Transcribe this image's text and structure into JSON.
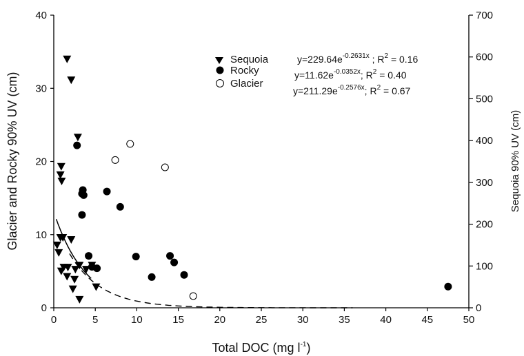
{
  "chart_data": {
    "type": "scatter",
    "xlabel": {
      "main": "Total DOC (mg l",
      "sup": "-1",
      "end": ")"
    },
    "ylabel_left": "Glacier and Rocky 90% UV (cm)",
    "ylabel_right": "Sequoia 90% UV (cm)",
    "xlim": [
      0,
      50
    ],
    "ylim_left": [
      0,
      40
    ],
    "ylim_right": [
      0,
      700
    ],
    "x_ticks": [
      "0",
      "5",
      "10",
      "15",
      "20",
      "25",
      "30",
      "35",
      "40",
      "45",
      "50"
    ],
    "y_left_ticks": [
      "0",
      "10",
      "20",
      "30",
      "40"
    ],
    "y_right_ticks": [
      "0",
      "100",
      "200",
      "300",
      "400",
      "500",
      "600",
      "700"
    ],
    "legend_position": "top-right",
    "colors": {
      "marker": "#000000",
      "background": "#ffffff"
    },
    "series": [
      {
        "name": "Sequoia",
        "marker": "triangle-down",
        "axis": "right",
        "equation": {
          "pre": "y=229.64e",
          "exp": "-0.2631x",
          "mid": " ; R",
          "r2exp": "2",
          "post": " = 0.16"
        },
        "points": [
          [
            1.6,
            595
          ],
          [
            2.1,
            545
          ],
          [
            2.9,
            408
          ],
          [
            0.9,
            338
          ],
          [
            0.8,
            318
          ],
          [
            0.95,
            303
          ],
          [
            0.4,
            150
          ],
          [
            0.6,
            132
          ],
          [
            0.8,
            168
          ],
          [
            1.1,
            168
          ],
          [
            2.1,
            163
          ],
          [
            1.2,
            97
          ],
          [
            1.7,
            97
          ],
          [
            2.6,
            92
          ],
          [
            3.1,
            102
          ],
          [
            0.9,
            88
          ],
          [
            1.6,
            75
          ],
          [
            2.5,
            68
          ],
          [
            2.3,
            45
          ],
          [
            3.1,
            20
          ],
          [
            5.1,
            50
          ],
          [
            3.9,
            92
          ],
          [
            4.6,
            102
          ]
        ],
        "fit_x_range": [
          0.3,
          4.5
        ]
      },
      {
        "name": "Rocky",
        "marker": "filled-circle",
        "axis": "left",
        "equation": {
          "pre": "y=11.62e",
          "exp": "-0.0352x",
          "mid": "; R",
          "r2exp": "2",
          "post": " = 0.40"
        },
        "points": [
          [
            2.8,
            22.2
          ],
          [
            3.5,
            16.1
          ],
          [
            3.4,
            15.6
          ],
          [
            3.6,
            15.4
          ],
          [
            3.4,
            12.7
          ],
          [
            6.4,
            15.9
          ],
          [
            8.0,
            13.8
          ],
          [
            4.2,
            7.1
          ],
          [
            4.6,
            5.6
          ],
          [
            5.2,
            5.4
          ],
          [
            9.9,
            7.0
          ],
          [
            11.8,
            4.2
          ],
          [
            14.0,
            7.1
          ],
          [
            14.5,
            6.2
          ],
          [
            15.7,
            4.5
          ],
          [
            47.5,
            2.9
          ]
        ]
      },
      {
        "name": "Glacier",
        "marker": "open-circle",
        "axis": "left",
        "equation": {
          "pre": "y=211.29e",
          "exp": "-0.2576x",
          "mid": "; R",
          "r2exp": "2",
          "post": " = 0.67"
        },
        "points": [
          [
            7.4,
            20.2
          ],
          [
            9.2,
            22.4
          ],
          [
            13.4,
            19.2
          ],
          [
            16.8,
            1.6
          ]
        ],
        "fit_x_range": [
          1.9,
          36
        ]
      }
    ]
  }
}
